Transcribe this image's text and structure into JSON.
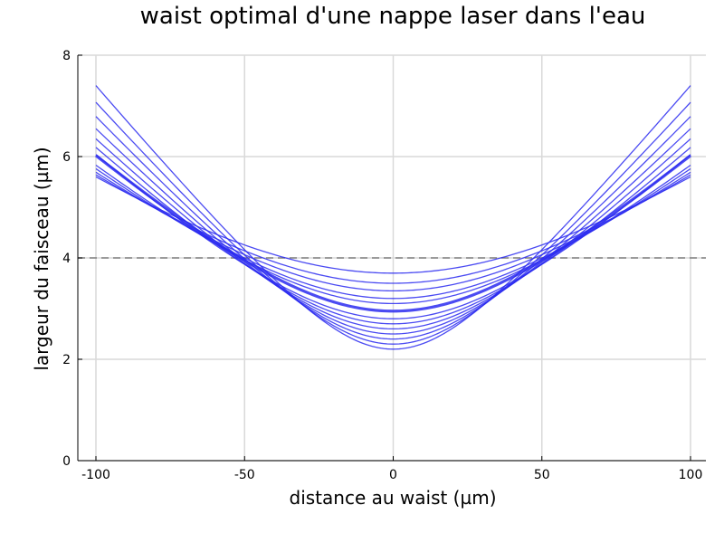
{
  "chart_data": {
    "type": "line",
    "title": "waist optimal d'une nappe laser dans l'eau",
    "xlabel": "distance au waist (µm)",
    "ylabel": "largeur du faisceau (µm)",
    "xlim": [
      -100,
      100
    ],
    "ylim": [
      0,
      8
    ],
    "xticks": [
      -100,
      -50,
      0,
      50,
      100
    ],
    "xtick_labels": [
      "-100",
      "-50",
      "0",
      "50",
      "100"
    ],
    "yticks": [
      0,
      2,
      4,
      6,
      8
    ],
    "ytick_labels": [
      "0",
      "2",
      "4",
      "6",
      "8"
    ],
    "grid": true,
    "legend": "none",
    "colors": {
      "series": "#2b2bf0",
      "reference": "#808080",
      "grid": "#d9d9d9",
      "axis": "#000000"
    },
    "series_model": "w(x) = w0 * sqrt(1 + (x / zR)^2), one curve per waist w0",
    "x_range_um": [
      -100,
      100
    ],
    "reference_line": {
      "y": 4,
      "style": "dashed"
    },
    "highlighted_waist": 2.95,
    "series": [
      {
        "waist": 2.2,
        "width_at_100": 7.4
      },
      {
        "waist": 2.3,
        "width_at_100": 7.07
      },
      {
        "waist": 2.4,
        "width_at_100": 6.79
      },
      {
        "waist": 2.5,
        "width_at_100": 6.55
      },
      {
        "waist": 2.6,
        "width_at_100": 6.35
      },
      {
        "waist": 2.7,
        "width_at_100": 6.18
      },
      {
        "waist": 2.8,
        "width_at_100": 6.04
      },
      {
        "waist": 2.95,
        "width_at_100": 6.02
      },
      {
        "waist": 3.1,
        "width_at_100": 5.83
      },
      {
        "waist": 3.2,
        "width_at_100": 5.76
      },
      {
        "waist": 3.35,
        "width_at_100": 5.69
      },
      {
        "waist": 3.5,
        "width_at_100": 5.64
      },
      {
        "waist": 3.7,
        "width_at_100": 5.6
      }
    ]
  }
}
